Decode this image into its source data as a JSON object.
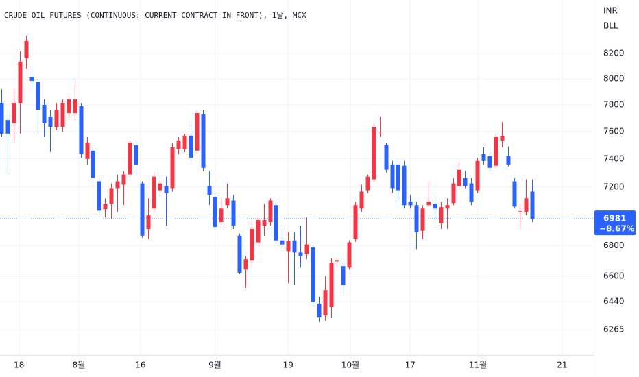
{
  "chart_data": {
    "type": "candlestick",
    "title": "CRUDE OIL FUTURES (CONTINUOUS: CURRENT CONTRACT IN FRONT), 1날, MCX",
    "currency": "INR",
    "unit": "BLL",
    "log_scale": true,
    "grid": true,
    "up_color": "#f23645",
    "down_color": "#2962ff",
    "ylim": [
      6113,
      8638
    ],
    "yticks": [
      6265,
      6440,
      6600,
      6800,
      7200,
      7400,
      7600,
      7800,
      8000,
      8200
    ],
    "xlim": [
      -0.22,
      96.97
    ],
    "xticks": [
      {
        "value": 2.9,
        "label": "18"
      },
      {
        "value": 12.7,
        "label": "8월"
      },
      {
        "value": 22.8,
        "label": "16"
      },
      {
        "value": 35,
        "label": "9월"
      },
      {
        "value": 47,
        "label": "19"
      },
      {
        "value": 57.2,
        "label": "10월"
      },
      {
        "value": 67,
        "label": "17"
      },
      {
        "value": 78.1,
        "label": "11월"
      },
      {
        "value": 91.9,
        "label": "21"
      }
    ],
    "last_price": 6981,
    "last_change": "−8.67%",
    "open": [
      7815,
      7685,
      7660,
      7815,
      8162,
      8016,
      7973,
      7800,
      7711,
      7634,
      7634,
      7737,
      7737,
      7789,
      7400,
      7459,
      7240,
      7046,
      7083,
      7192,
      7216,
      7288,
      7499,
      7225,
      6912,
      7050,
      7177,
      7206,
      7192,
      7469,
      7469,
      7569,
      7459,
      7726,
      7206,
      7130,
      6958,
      7074,
      7106,
      6867,
      6644,
      6702,
      6822,
      6935,
      6958,
      7074,
      6835,
      6764,
      6835,
      6755,
      6746,
      6790,
      6427,
      6354,
      6405,
      6697,
      6666,
      6657,
      6844,
      7050,
      7177,
      7254,
      7594,
      7499,
      7360,
      7360,
      7351,
      7097,
      7074,
      6899,
      7074,
      7083,
      6949,
      7050,
      7088,
      7206,
      7264,
      7225,
      7177,
      7434,
      7419,
      7351,
      7534,
      7419,
      7240,
      7027,
      7027,
      7168
    ],
    "high": [
      7919,
      7763,
      7919,
      8216,
      8344,
      8081,
      8000,
      7841,
      7763,
      7815,
      7841,
      7867,
      7984,
      7815,
      7559,
      7484,
      7264,
      7121,
      7225,
      7288,
      7312,
      7534,
      7534,
      7240,
      7121,
      7302,
      7254,
      7273,
      7519,
      7559,
      7584,
      7660,
      7763,
      7763,
      7312,
      7144,
      7121,
      7225,
      7144,
      6880,
      6733,
      6958,
      6990,
      7083,
      7121,
      7097,
      6912,
      6890,
      6890,
      6935,
      6990,
      6799,
      6470,
      6600,
      6719,
      6719,
      6719,
      6835,
      7097,
      7216,
      7288,
      7660,
      7711,
      7519,
      7385,
      7385,
      7385,
      7144,
      7097,
      7074,
      7240,
      7130,
      7097,
      7121,
      7264,
      7370,
      7312,
      7264,
      7409,
      7484,
      7449,
      7584,
      7670,
      7489,
      7264,
      7083,
      7254,
      7254
    ],
    "low": [
      7559,
      7288,
      7534,
      7584,
      8081,
      7919,
      7584,
      7559,
      7449,
      7609,
      7599,
      7701,
      7685,
      7409,
      7360,
      7225,
      6990,
      6990,
      6981,
      7027,
      7074,
      7264,
      7288,
      6853,
      6844,
      7027,
      7130,
      6935,
      7168,
      7434,
      7449,
      7385,
      7434,
      7312,
      7074,
      6908,
      6935,
      7050,
      6912,
      6613,
      6526,
      6666,
      6799,
      6867,
      6935,
      6822,
      6764,
      6556,
      6543,
      6657,
      6711,
      6414,
      6312,
      6320,
      6337,
      6657,
      6491,
      6644,
      6826,
      7027,
      7158,
      7240,
      7559,
      7302,
      7158,
      7097,
      7050,
      7050,
      6777,
      6844,
      7064,
      6935,
      6912,
      6912,
      7074,
      7177,
      7192,
      7074,
      7158,
      7360,
      7312,
      7322,
      7484,
      7346,
      7050,
      6912,
      7004,
      6958
    ],
    "close": [
      7584,
      7584,
      7815,
      8135,
      8299,
      7984,
      7763,
      7660,
      7634,
      7763,
      7815,
      7841,
      7841,
      7434,
      7519,
      7264,
      7036,
      7083,
      7192,
      7240,
      7288,
      7519,
      7360,
      6867,
      7004,
      7273,
      7225,
      7158,
      7484,
      7534,
      7569,
      7409,
      7737,
      7336,
      7144,
      6926,
      7050,
      7121,
      6935,
      6622,
      6711,
      6912,
      6972,
      6972,
      7106,
      6835,
      6808,
      6831,
      6755,
      6733,
      6808,
      6440,
      6341,
      6513,
      6689,
      6702,
      6543,
      6822,
      7074,
      7168,
      7273,
      7634,
      7599,
      7322,
      7192,
      7177,
      7074,
      7074,
      6890,
      7050,
      7097,
      7050,
      7060,
      7074,
      7225,
      7322,
      7206,
      7097,
      7385,
      7385,
      7336,
      7559,
      7569,
      7360,
      7064,
      7032,
      7121,
      6981
    ]
  }
}
